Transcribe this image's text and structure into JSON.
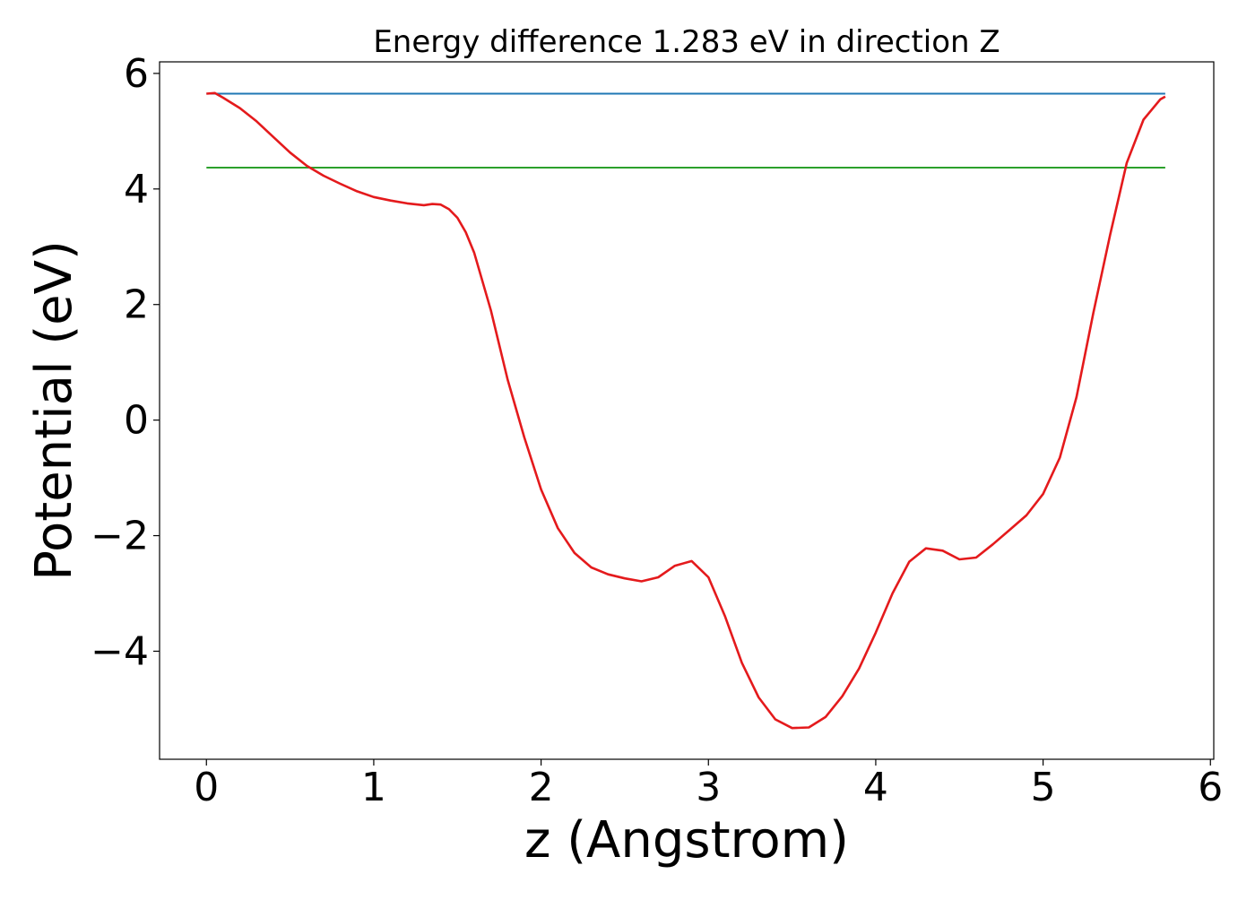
{
  "chart_data": {
    "type": "line",
    "title": "Energy difference 1.283 eV in direction Z",
    "xlabel": "z (Angstrom)",
    "ylabel": "Potential (eV)",
    "xlim": [
      -0.28,
      6.02
    ],
    "ylim": [
      -5.87,
      6.2
    ],
    "x_ticks": [
      0,
      1,
      2,
      3,
      4,
      5,
      6
    ],
    "x_tick_labels": [
      "0",
      "1",
      "2",
      "3",
      "4",
      "5",
      "6"
    ],
    "y_ticks": [
      -4,
      -2,
      0,
      2,
      4,
      6
    ],
    "y_tick_labels": [
      "−4",
      "−2",
      "0",
      "2",
      "4",
      "6"
    ],
    "grid": false,
    "series": [
      {
        "color": "#1f77b4",
        "x": [
          0,
          5.73
        ],
        "y": [
          5.65,
          5.65
        ]
      },
      {
        "color": "#2ca02c",
        "x": [
          0,
          5.73
        ],
        "y": [
          4.37,
          4.37
        ]
      },
      {
        "color": "#e41a1c",
        "x": [
          0,
          0.05,
          0.1,
          0.2,
          0.3,
          0.4,
          0.5,
          0.6,
          0.7,
          0.8,
          0.9,
          1.0,
          1.1,
          1.2,
          1.3,
          1.35,
          1.4,
          1.45,
          1.5,
          1.55,
          1.6,
          1.7,
          1.8,
          1.9,
          2.0,
          2.1,
          2.2,
          2.3,
          2.4,
          2.5,
          2.6,
          2.7,
          2.8,
          2.9,
          3.0,
          3.1,
          3.2,
          3.3,
          3.4,
          3.5,
          3.6,
          3.7,
          3.8,
          3.9,
          4.0,
          4.1,
          4.2,
          4.3,
          4.4,
          4.5,
          4.6,
          4.7,
          4.8,
          4.9,
          5.0,
          5.1,
          5.2,
          5.3,
          5.4,
          5.5,
          5.6,
          5.7,
          5.73
        ],
        "y": [
          5.65,
          5.66,
          5.58,
          5.4,
          5.17,
          4.9,
          4.63,
          4.4,
          4.23,
          4.09,
          3.96,
          3.86,
          3.8,
          3.75,
          3.72,
          3.74,
          3.73,
          3.65,
          3.5,
          3.25,
          2.9,
          1.9,
          0.7,
          -0.3,
          -1.2,
          -1.87,
          -2.3,
          -2.55,
          -2.67,
          -2.74,
          -2.79,
          -2.72,
          -2.52,
          -2.44,
          -2.72,
          -3.4,
          -4.2,
          -4.8,
          -5.18,
          -5.33,
          -5.32,
          -5.14,
          -4.78,
          -4.3,
          -3.68,
          -3.0,
          -2.45,
          -2.22,
          -2.26,
          -2.41,
          -2.38,
          -2.15,
          -1.9,
          -1.65,
          -1.28,
          -0.65,
          0.4,
          1.85,
          3.2,
          4.45,
          5.2,
          5.55,
          5.6
        ]
      }
    ]
  }
}
